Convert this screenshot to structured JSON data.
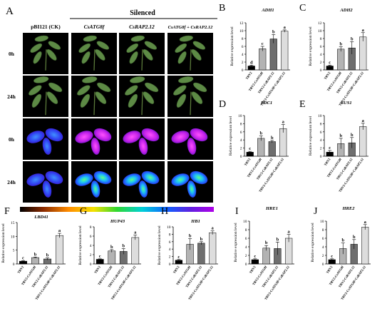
{
  "panelA": {
    "letter": "A",
    "silenced_header": "Silenced",
    "columns": [
      "pBI121 (CK)",
      "CsATG8f",
      "CsRAP2.12",
      "CsATG8f + CsRAP2.12"
    ],
    "rows": [
      "0h",
      "24h",
      "0h",
      "24h"
    ]
  },
  "common": {
    "ylabel": "Relative expression level",
    "categories": [
      "TRV2",
      "TRV2-CsATG8f",
      "TRV2-CsRAP2.12",
      "TRV2-CsATG8f+CsRAP2.12"
    ],
    "bar_colors": [
      "#000000",
      "#b3b3b3",
      "#6e6e6e",
      "#dddddd"
    ]
  },
  "chart_data": [
    {
      "panel": "B",
      "title": "ADH1",
      "type": "bar",
      "values": [
        1.0,
        5.4,
        7.9,
        9.9
      ],
      "errors": [
        0.2,
        0.6,
        1.1,
        0.3
      ],
      "letters": [
        "d",
        "c",
        "b",
        "a"
      ],
      "ylim": [
        0,
        12
      ],
      "ticks": [
        0,
        2,
        4,
        6,
        8,
        10,
        12
      ]
    },
    {
      "panel": "C",
      "title": "ADH2",
      "type": "bar",
      "values": [
        1.0,
        5.3,
        5.6,
        8.4
      ],
      "errors": [
        0.2,
        0.6,
        1.6,
        1.1
      ],
      "letters": [
        "c",
        "b",
        "b",
        "a"
      ],
      "ylim": [
        0,
        12
      ],
      "ticks": [
        0,
        2,
        4,
        6,
        8,
        10,
        12
      ]
    },
    {
      "panel": "D",
      "title": "PDC1",
      "type": "bar",
      "values": [
        1.0,
        4.4,
        3.6,
        6.8
      ],
      "errors": [
        0.2,
        0.6,
        0.3,
        1.0
      ],
      "letters": [
        "c",
        "b",
        "b",
        "a"
      ],
      "ylim": [
        0,
        10
      ],
      "ticks": [
        0,
        2,
        4,
        6,
        8,
        10
      ]
    },
    {
      "panel": "E",
      "title": "SUS1",
      "type": "bar",
      "values": [
        1.0,
        3.1,
        3.3,
        7.3
      ],
      "errors": [
        0.4,
        1.3,
        1.3,
        0.8
      ],
      "letters": [
        "c",
        "b",
        "b",
        "a"
      ],
      "ylim": [
        0,
        10
      ],
      "ticks": [
        0,
        2,
        4,
        6,
        8,
        10
      ]
    },
    {
      "panel": "F",
      "title": "LBD41",
      "type": "bar",
      "values": [
        1.0,
        2.3,
        1.8,
        10.3
      ],
      "errors": [
        0.2,
        0.2,
        0.4,
        0.8
      ],
      "letters": [
        "c",
        "b",
        "b",
        "a"
      ],
      "ylim": [
        0,
        15
      ],
      "ticks": [
        0,
        5,
        10,
        15
      ]
    },
    {
      "panel": "G",
      "title": "HUP43",
      "type": "bar",
      "values": [
        1.0,
        2.8,
        2.7,
        5.7
      ],
      "errors": [
        0.1,
        0.3,
        0.6,
        0.5
      ],
      "letters": [
        "c",
        "b",
        "b",
        "a"
      ],
      "ylim": [
        0,
        8
      ],
      "ticks": [
        0,
        2,
        4,
        6,
        8
      ]
    },
    {
      "panel": "H",
      "title": "HB1",
      "type": "bar",
      "values": [
        1.0,
        5.3,
        5.6,
        8.4
      ],
      "errors": [
        0.2,
        1.5,
        0.4,
        0.5
      ],
      "letters": [
        "c",
        "b",
        "b",
        "a"
      ],
      "ylim": [
        0,
        10
      ],
      "ticks": [
        0,
        2,
        4,
        6,
        8,
        10
      ]
    },
    {
      "panel": "I",
      "title": "HRE1",
      "type": "bar",
      "values": [
        1.0,
        3.7,
        3.6,
        6.0
      ],
      "errors": [
        0.2,
        0.6,
        1.5,
        0.9
      ],
      "letters": [
        "c",
        "b",
        "b",
        "a"
      ],
      "ylim": [
        0,
        10
      ],
      "ticks": [
        0,
        2,
        4,
        6,
        8,
        10
      ]
    },
    {
      "panel": "J",
      "title": "HRE2",
      "type": "bar",
      "values": [
        1.0,
        3.6,
        4.6,
        8.6
      ],
      "errors": [
        0.2,
        1.3,
        1.1,
        0.6
      ],
      "letters": [
        "c",
        "b",
        "b",
        "a"
      ],
      "ylim": [
        0,
        10
      ],
      "ticks": [
        0,
        2,
        4,
        6,
        8,
        10
      ]
    }
  ]
}
